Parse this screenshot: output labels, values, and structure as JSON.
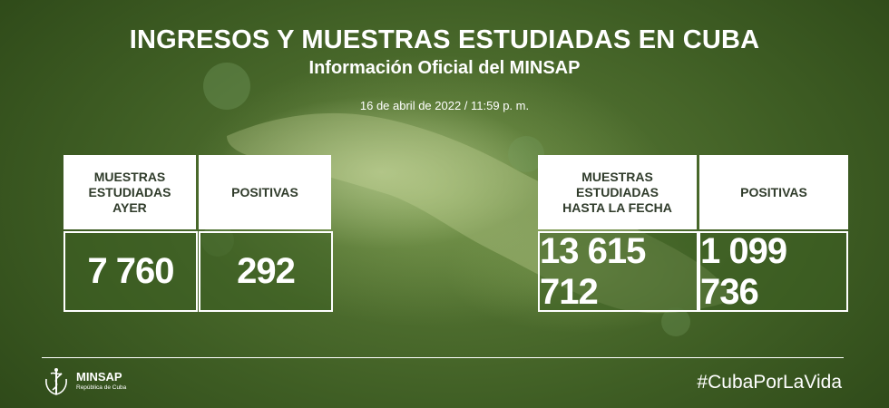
{
  "header": {
    "title": "INGRESOS Y MUESTRAS ESTUDIADAS EN CUBA",
    "subtitle": "Información Oficial del MINSAP",
    "date": "16 de abril de 2022 / 11:59 p. m."
  },
  "left_panel": {
    "col1_header": "MUESTRAS\nESTUDIADAS\nAYER",
    "col1_value": "7 760",
    "col2_header": "POSITIVAS",
    "col2_value": "292"
  },
  "right_panel": {
    "col1_header": "MUESTRAS\nESTUDIADAS\nHASTA LA FECHA",
    "col1_value": "13 615 712",
    "col2_header": "POSITIVAS",
    "col2_value": "1 099 736"
  },
  "footer": {
    "brand": "MINSAP",
    "brand_sub": "República de Cuba",
    "hashtag": "#CubaPorLaVida"
  },
  "colors": {
    "background": "#3f5e24",
    "header_bg": "#ffffff",
    "header_text": "#2f3b2a",
    "value_text": "#ffffff"
  }
}
